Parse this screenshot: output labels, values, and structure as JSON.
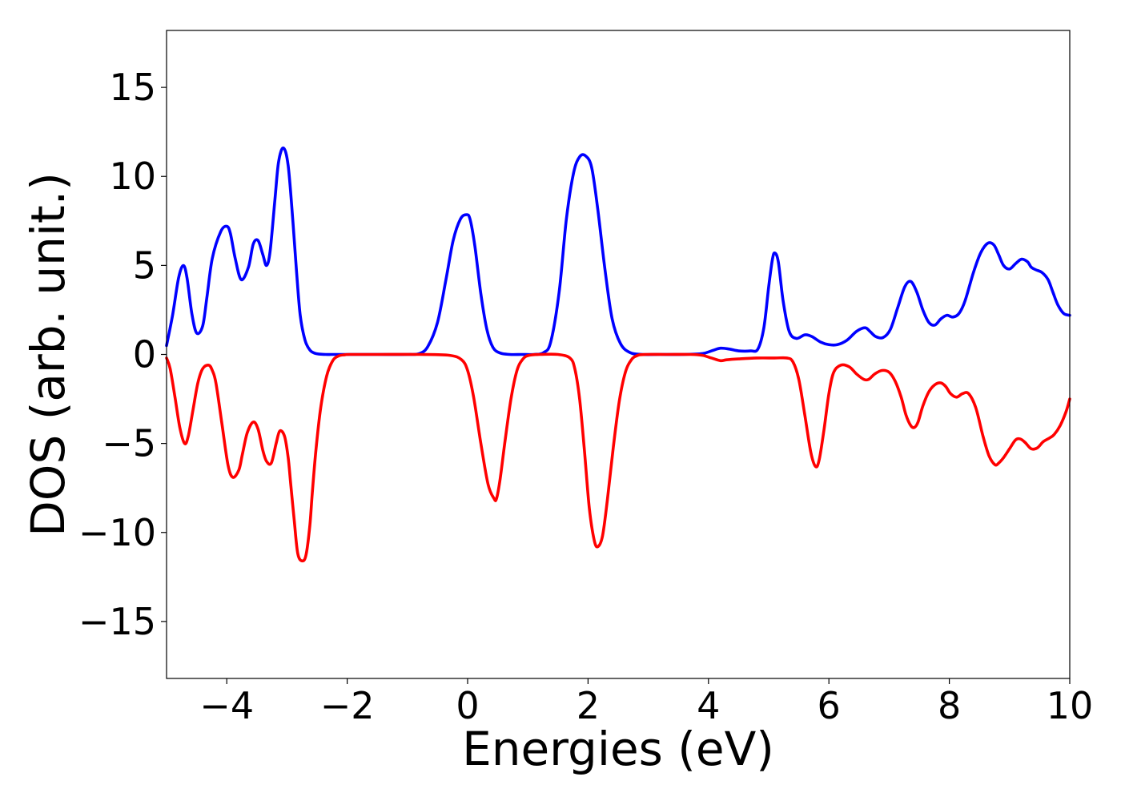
{
  "chart_data": {
    "type": "line",
    "title": "",
    "xlabel": "Energies (eV)",
    "ylabel": "DOS (arb. unit.)",
    "xlim": [
      -5,
      10
    ],
    "ylim": [
      -18.2,
      18.2
    ],
    "xticks": [
      -4,
      -2,
      0,
      2,
      4,
      6,
      8,
      10
    ],
    "xtick_labels": [
      "−4",
      "−2",
      "0",
      "2",
      "4",
      "6",
      "8",
      "10"
    ],
    "yticks": [
      -15,
      -10,
      -5,
      0,
      5,
      10,
      15
    ],
    "ytick_labels": [
      "−15",
      "−10",
      "−5",
      "0",
      "5",
      "10",
      "15"
    ],
    "grid": false,
    "legend": false,
    "series": [
      {
        "color": "#0000ff",
        "x": [
          -5.0,
          -4.9,
          -4.8,
          -4.72,
          -4.66,
          -4.58,
          -4.5,
          -4.4,
          -4.33,
          -4.24,
          -4.1,
          -4.0,
          -3.94,
          -3.86,
          -3.76,
          -3.64,
          -3.56,
          -3.48,
          -3.4,
          -3.34,
          -3.28,
          -3.2,
          -3.14,
          -3.06,
          -2.98,
          -2.9,
          -2.84,
          -2.78,
          -2.7,
          -2.62,
          -2.54,
          -2.46,
          -2.36,
          -2.26,
          -2.16,
          -2.08,
          -2.0,
          -1.5,
          -1.0,
          -0.8,
          -0.66,
          -0.5,
          -0.36,
          -0.24,
          -0.12,
          -0.02,
          0.04,
          0.12,
          0.22,
          0.32,
          0.42,
          0.54,
          0.7,
          0.9,
          1.1,
          1.26,
          1.38,
          1.52,
          1.64,
          1.76,
          1.86,
          1.96,
          2.06,
          2.16,
          2.28,
          2.4,
          2.54,
          2.7,
          2.9,
          3.2,
          3.6,
          3.9,
          4.05,
          4.2,
          4.35,
          4.5,
          4.7,
          4.82,
          4.92,
          5.0,
          5.06,
          5.1,
          5.16,
          5.24,
          5.34,
          5.46,
          5.6,
          5.72,
          5.86,
          6.0,
          6.14,
          6.3,
          6.46,
          6.6,
          6.68,
          6.78,
          6.9,
          7.02,
          7.14,
          7.26,
          7.36,
          7.46,
          7.56,
          7.66,
          7.76,
          7.86,
          7.96,
          8.06,
          8.16,
          8.26,
          8.4,
          8.52,
          8.64,
          8.74,
          8.82,
          8.9,
          9.0,
          9.1,
          9.2,
          9.3,
          9.36,
          9.44,
          9.54,
          9.64,
          9.72,
          9.8,
          9.9,
          10.0
        ],
        "y": [
          0.5,
          2.2,
          4.3,
          5.0,
          4.3,
          2.3,
          1.2,
          1.6,
          3.2,
          5.4,
          6.9,
          7.2,
          6.8,
          5.4,
          4.2,
          4.9,
          6.2,
          6.4,
          5.6,
          5.0,
          5.8,
          8.7,
          10.8,
          11.6,
          10.6,
          7.4,
          4.6,
          2.2,
          0.8,
          0.25,
          0.07,
          0.02,
          0.0,
          0.0,
          0.0,
          0.0,
          0.0,
          0.0,
          0.0,
          0.05,
          0.45,
          1.8,
          4.2,
          6.4,
          7.6,
          7.85,
          7.6,
          6.1,
          3.4,
          1.4,
          0.4,
          0.08,
          0.0,
          0.0,
          0.0,
          0.1,
          0.7,
          3.5,
          7.6,
          10.2,
          11.1,
          11.15,
          10.5,
          8.2,
          4.8,
          2.0,
          0.6,
          0.1,
          0.0,
          0.0,
          0.0,
          0.05,
          0.2,
          0.35,
          0.3,
          0.2,
          0.2,
          0.3,
          1.5,
          3.8,
          5.3,
          5.7,
          5.2,
          3.0,
          1.3,
          0.9,
          1.1,
          1.0,
          0.7,
          0.55,
          0.55,
          0.8,
          1.3,
          1.5,
          1.3,
          1.0,
          0.95,
          1.4,
          2.6,
          3.8,
          4.1,
          3.5,
          2.5,
          1.8,
          1.65,
          2.0,
          2.2,
          2.1,
          2.3,
          3.0,
          4.6,
          5.7,
          6.25,
          6.15,
          5.6,
          5.0,
          4.8,
          5.1,
          5.35,
          5.2,
          4.9,
          4.75,
          4.6,
          4.2,
          3.5,
          2.8,
          2.3,
          2.2
        ]
      },
      {
        "color": "#ff0000",
        "x": [
          -5.0,
          -4.94,
          -4.86,
          -4.78,
          -4.7,
          -4.64,
          -4.56,
          -4.48,
          -4.4,
          -4.3,
          -4.24,
          -4.18,
          -4.08,
          -3.98,
          -3.9,
          -3.8,
          -3.74,
          -3.66,
          -3.56,
          -3.48,
          -3.4,
          -3.34,
          -3.26,
          -3.18,
          -3.12,
          -3.04,
          -2.98,
          -2.94,
          -2.88,
          -2.82,
          -2.74,
          -2.68,
          -2.62,
          -2.58,
          -2.52,
          -2.44,
          -2.34,
          -2.24,
          -2.14,
          -2.04,
          -1.96,
          -1.5,
          -0.8,
          -0.3,
          -0.1,
          0.0,
          0.1,
          0.22,
          0.34,
          0.44,
          0.48,
          0.54,
          0.62,
          0.72,
          0.82,
          0.92,
          1.02,
          1.2,
          1.5,
          1.7,
          1.78,
          1.86,
          1.94,
          2.02,
          2.1,
          2.16,
          2.24,
          2.32,
          2.42,
          2.52,
          2.62,
          2.72,
          2.82,
          2.95,
          3.3,
          3.7,
          3.9,
          4.05,
          4.2,
          4.3,
          4.5,
          4.8,
          5.1,
          5.3,
          5.4,
          5.5,
          5.6,
          5.7,
          5.78,
          5.84,
          5.92,
          6.0,
          6.08,
          6.2,
          6.34,
          6.46,
          6.58,
          6.66,
          6.76,
          6.88,
          7.0,
          7.1,
          7.2,
          7.28,
          7.36,
          7.42,
          7.48,
          7.56,
          7.66,
          7.76,
          7.86,
          7.94,
          8.02,
          8.12,
          8.22,
          8.32,
          8.44,
          8.56,
          8.66,
          8.76,
          8.82,
          8.9,
          9.0,
          9.1,
          9.18,
          9.26,
          9.36,
          9.46,
          9.56,
          9.66,
          9.74,
          9.84,
          9.94,
          10.0
        ],
        "y": [
          -0.2,
          -0.8,
          -2.4,
          -4.1,
          -5.0,
          -4.6,
          -3.1,
          -1.6,
          -0.8,
          -0.6,
          -0.9,
          -1.6,
          -3.9,
          -6.2,
          -6.9,
          -6.5,
          -5.6,
          -4.4,
          -3.8,
          -4.2,
          -5.4,
          -6.0,
          -6.1,
          -5.0,
          -4.3,
          -4.6,
          -5.8,
          -7.2,
          -9.3,
          -11.2,
          -11.6,
          -11.2,
          -9.6,
          -7.8,
          -5.4,
          -3.0,
          -1.2,
          -0.35,
          -0.08,
          -0.02,
          0.0,
          0.0,
          0.0,
          -0.05,
          -0.3,
          -0.9,
          -2.4,
          -5.0,
          -7.3,
          -8.1,
          -8.1,
          -7.0,
          -4.9,
          -2.5,
          -0.9,
          -0.25,
          -0.05,
          0.0,
          0.0,
          -0.2,
          -0.8,
          -2.5,
          -5.4,
          -8.6,
          -10.4,
          -10.8,
          -10.2,
          -8.2,
          -5.2,
          -2.6,
          -1.0,
          -0.3,
          -0.06,
          0.0,
          0.0,
          0.0,
          -0.05,
          -0.2,
          -0.35,
          -0.3,
          -0.25,
          -0.2,
          -0.2,
          -0.2,
          -0.4,
          -1.4,
          -3.4,
          -5.5,
          -6.3,
          -5.9,
          -4.2,
          -2.2,
          -1.0,
          -0.6,
          -0.7,
          -1.1,
          -1.4,
          -1.4,
          -1.1,
          -0.9,
          -1.0,
          -1.5,
          -2.4,
          -3.4,
          -4.0,
          -4.1,
          -3.8,
          -2.9,
          -2.1,
          -1.7,
          -1.6,
          -1.8,
          -2.2,
          -2.4,
          -2.2,
          -2.2,
          -3.0,
          -4.6,
          -5.7,
          -6.2,
          -6.1,
          -5.8,
          -5.3,
          -4.8,
          -4.75,
          -4.95,
          -5.3,
          -5.25,
          -4.9,
          -4.7,
          -4.5,
          -4.0,
          -3.2,
          -2.5
        ]
      }
    ]
  }
}
